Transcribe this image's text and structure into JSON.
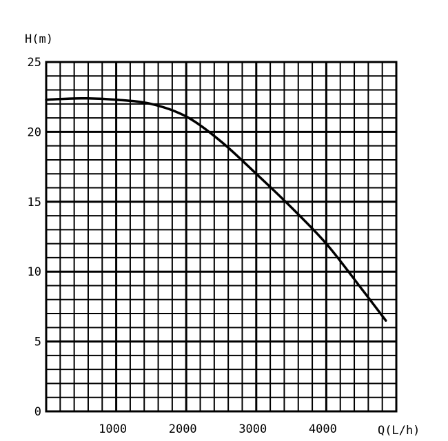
{
  "chart_data": {
    "type": "line",
    "title": "",
    "ylabel": "H(m)",
    "xlabel": "Q(L/h)",
    "xlim": [
      0,
      5000
    ],
    "ylim": [
      0,
      25
    ],
    "x_ticks": [
      1000,
      2000,
      3000,
      4000
    ],
    "x_tick_labels": [
      "1000",
      "2000",
      "3000",
      "4000"
    ],
    "y_ticks": [
      0,
      5,
      10,
      15,
      20,
      25
    ],
    "y_tick_labels": [
      "0",
      "5",
      "10",
      "15",
      "20",
      "25"
    ],
    "grid": true,
    "minor_per_major": 5,
    "series": [
      {
        "name": "",
        "x": [
          0,
          500,
          1000,
          1500,
          2000,
          2500,
          3000,
          3500,
          4000,
          4500,
          4850
        ],
        "y": [
          22.3,
          22.4,
          22.3,
          22.0,
          21.1,
          19.3,
          17.0,
          14.6,
          12.0,
          8.8,
          6.5
        ]
      }
    ]
  }
}
